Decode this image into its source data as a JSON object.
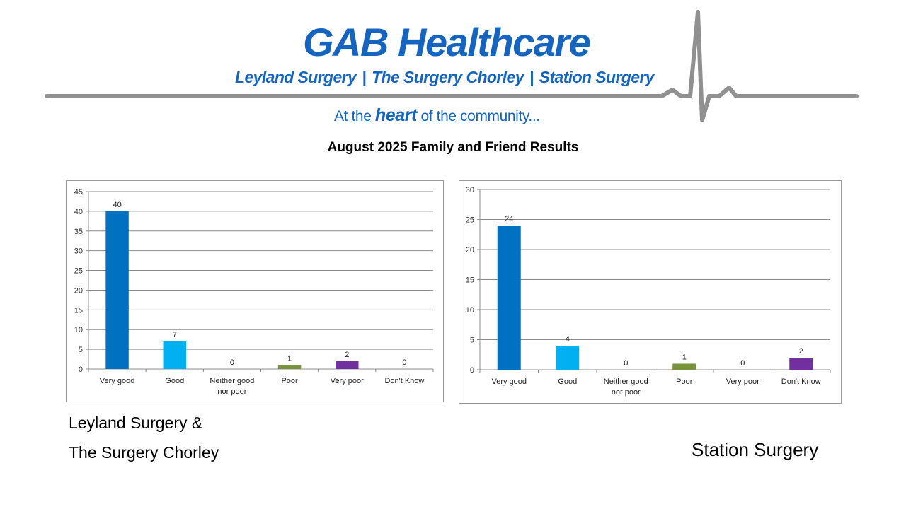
{
  "header": {
    "brand": "GAB Healthcare",
    "practices": [
      "Leyland Surgery",
      "The Surgery Chorley",
      "Station Surgery"
    ],
    "separator": "|",
    "tagline_before": "At the",
    "tagline_emphasis": "heart",
    "tagline_after": "of the community...",
    "brand_color": "#1565c0",
    "line_color": "#909090"
  },
  "report_title": "August 2025 Family and Friend Results",
  "captions": {
    "left_line1": "Leyland Surgery &",
    "left_line2": "The Surgery Chorley",
    "right": "Station Surgery"
  },
  "chart_data": [
    {
      "type": "bar",
      "categories": [
        "Very good",
        "Good",
        "Neither good nor poor",
        "Poor",
        "Very poor",
        "Don't Know"
      ],
      "values": [
        40,
        7,
        0,
        1,
        2,
        0
      ],
      "colors": [
        "#0070c0",
        "#00b0f0",
        "#4472c4",
        "#76923c",
        "#7030a0",
        "#7030a0"
      ],
      "ylim": [
        0,
        45
      ],
      "yticks": [
        0,
        5,
        10,
        15,
        20,
        25,
        30,
        35,
        40,
        45
      ],
      "grid": true,
      "data_labels": true,
      "legend": "none"
    },
    {
      "type": "bar",
      "categories": [
        "Very good",
        "Good",
        "Neither good nor poor",
        "Poor",
        "Very poor",
        "Don't Know"
      ],
      "values": [
        24,
        4,
        0,
        1,
        0,
        2
      ],
      "colors": [
        "#0070c0",
        "#00b0f0",
        "#4472c4",
        "#76923c",
        "#7030a0",
        "#7030a0"
      ],
      "ylim": [
        0,
        30
      ],
      "yticks": [
        0,
        5,
        10,
        15,
        20,
        25,
        30
      ],
      "grid": true,
      "data_labels": true,
      "legend": "none"
    }
  ]
}
